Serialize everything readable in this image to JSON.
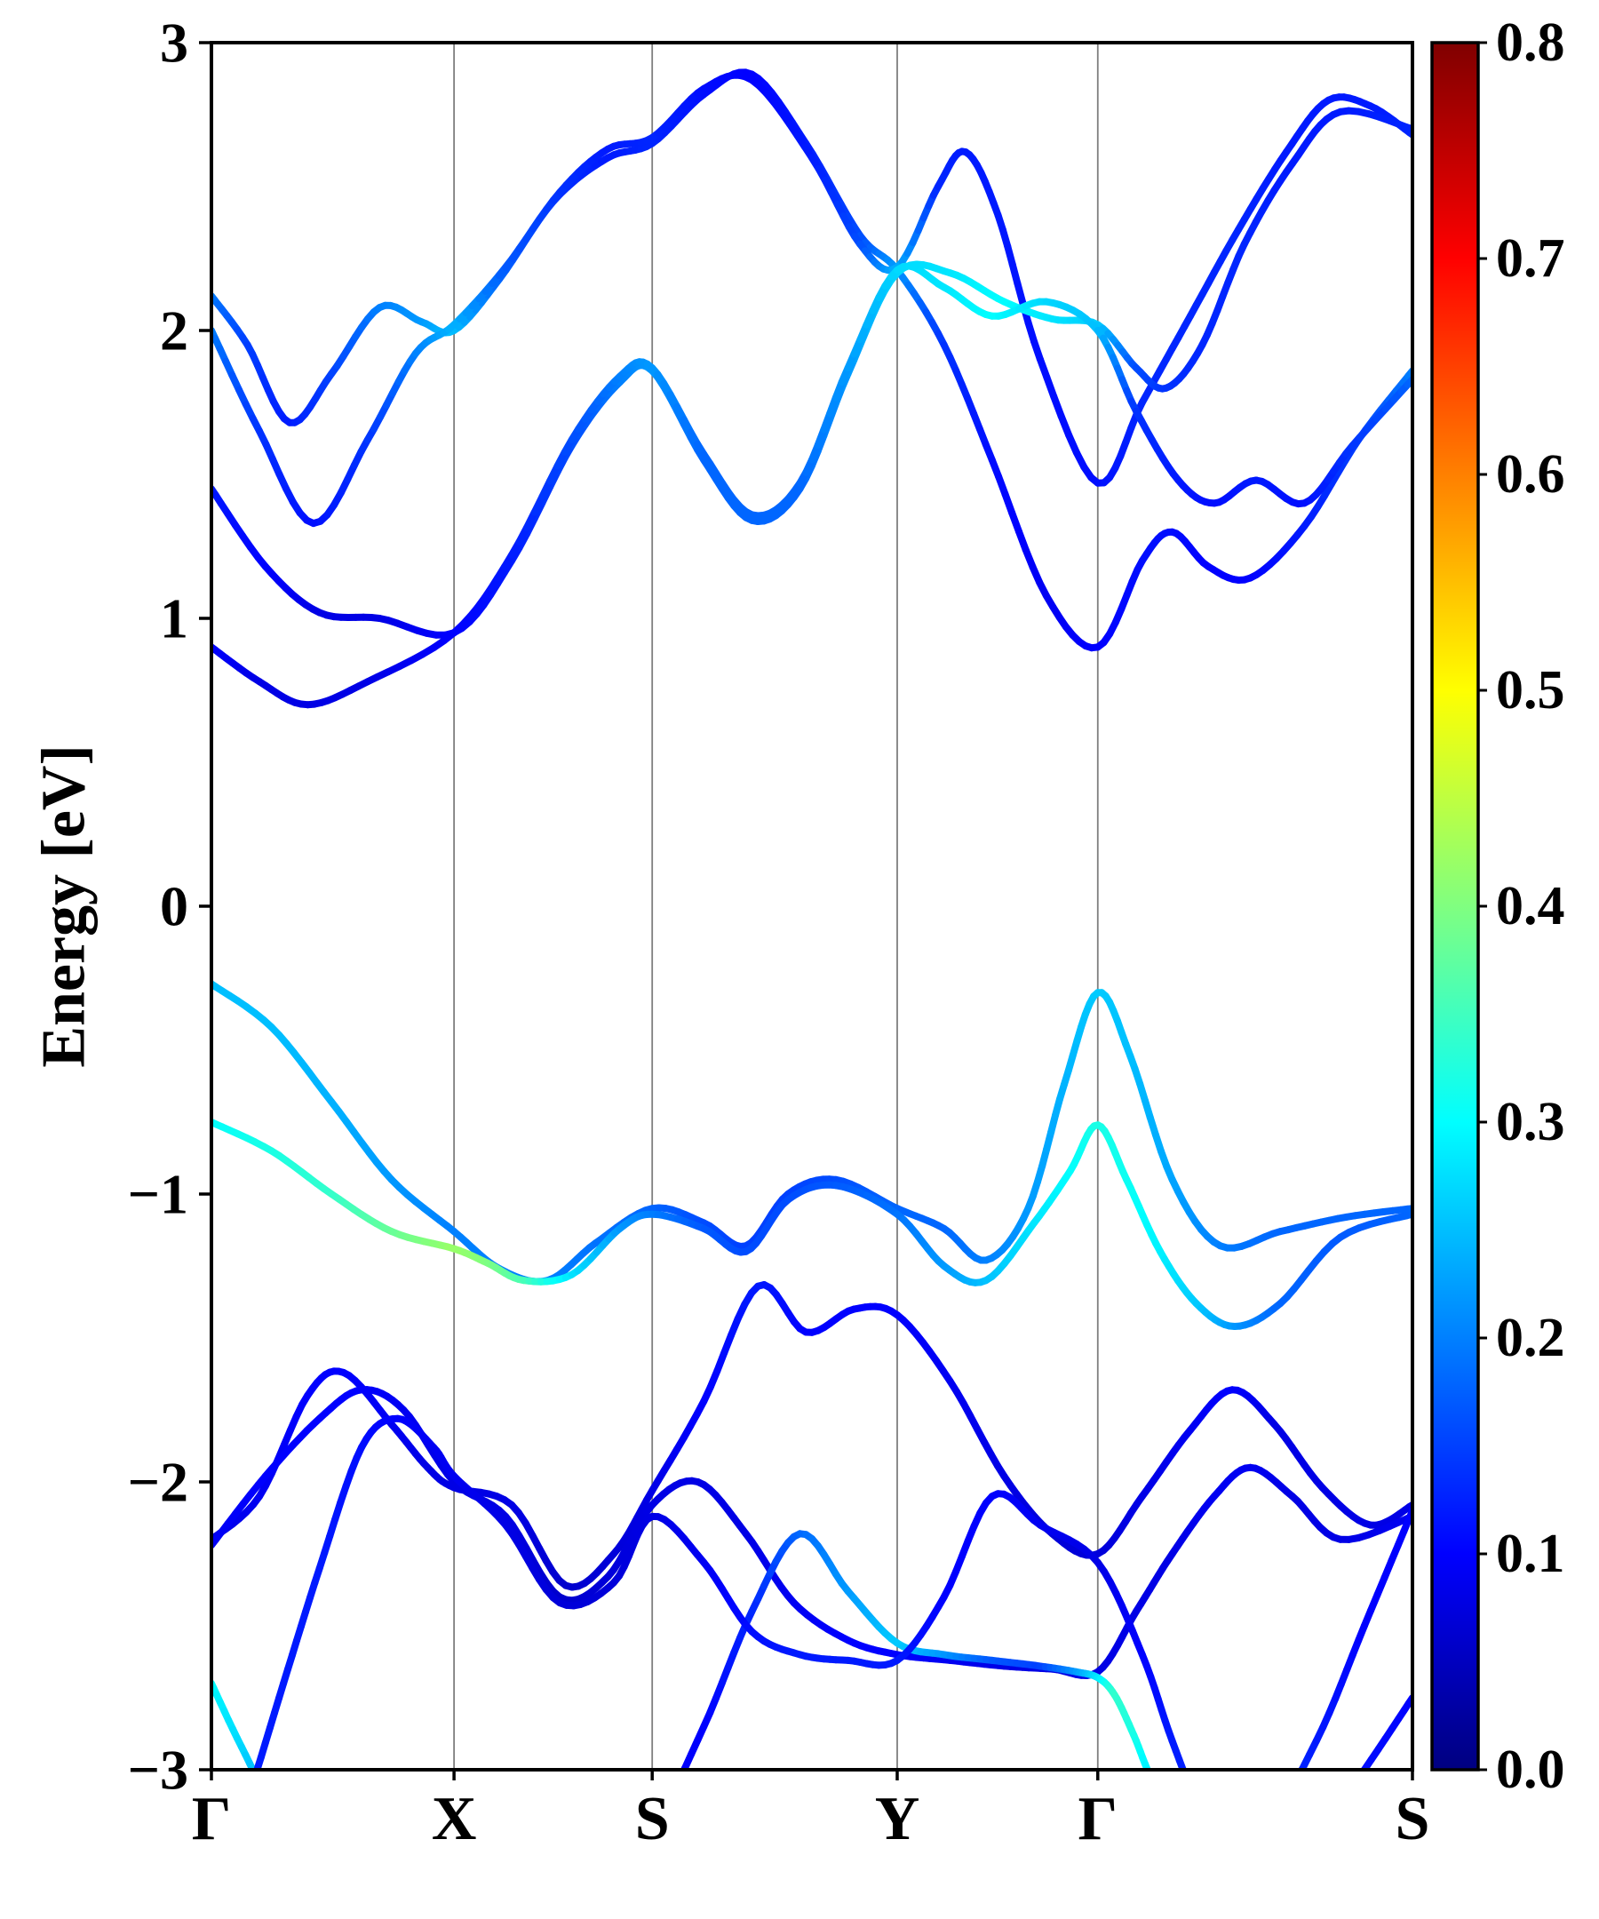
{
  "chart_data": {
    "type": "line",
    "subtype": "band-structure",
    "title": "",
    "xlabel": "",
    "ylabel": "Energy [eV]",
    "ylim": [
      -3,
      3
    ],
    "ytick_values": [
      -3,
      -2,
      -1,
      0,
      1,
      2,
      3
    ],
    "ytick_labels": [
      "−3",
      "−2",
      "−1",
      "0",
      "1",
      "2",
      "3"
    ],
    "grid": true,
    "legend": false,
    "kpoints": [
      {
        "label": "Γ",
        "pos": 0.0
      },
      {
        "label": "X",
        "pos": 0.202
      },
      {
        "label": "S",
        "pos": 0.367
      },
      {
        "label": "Y",
        "pos": 0.571
      },
      {
        "label": "Γ",
        "pos": 0.738
      },
      {
        "label": "S",
        "pos": 1.0
      }
    ],
    "colorbar": {
      "min": 0.0,
      "max": 0.8,
      "colormap": "jet",
      "tick_values": [
        0.0,
        0.1,
        0.2,
        0.3,
        0.4,
        0.5,
        0.6,
        0.7,
        0.8
      ],
      "tick_labels": [
        "0.0",
        "0.1",
        "0.2",
        "0.3",
        "0.4",
        "0.5",
        "0.6",
        "0.7",
        "0.8"
      ]
    },
    "style": {
      "grid_color": "#7f7f7f",
      "axis_color": "#000000",
      "band_linewidth": 8
    },
    "bands": [
      [
        [
          0.0,
          2.12,
          0.2
        ],
        [
          0.03,
          1.95,
          0.15
        ],
        [
          0.065,
          1.68,
          0.12
        ],
        [
          0.1,
          1.85,
          0.15
        ],
        [
          0.14,
          2.08,
          0.2
        ],
        [
          0.175,
          2.03,
          0.22
        ],
        [
          0.202,
          2.0,
          0.25
        ],
        [
          0.24,
          2.18,
          0.18
        ],
        [
          0.285,
          2.45,
          0.14
        ],
        [
          0.33,
          2.6,
          0.12
        ],
        [
          0.367,
          2.65,
          0.13
        ],
        [
          0.41,
          2.82,
          0.11
        ],
        [
          0.45,
          2.89,
          0.1
        ],
        [
          0.495,
          2.65,
          0.12
        ],
        [
          0.54,
          2.33,
          0.16
        ],
        [
          0.571,
          2.21,
          0.22
        ],
        [
          0.61,
          1.95,
          0.14
        ],
        [
          0.65,
          1.55,
          0.11
        ],
        [
          0.695,
          1.08,
          0.09
        ],
        [
          0.738,
          0.9,
          0.1
        ],
        [
          0.775,
          1.2,
          0.11
        ],
        [
          0.8,
          1.3,
          0.11
        ],
        [
          0.83,
          1.18,
          0.1
        ],
        [
          0.865,
          1.14,
          0.1
        ],
        [
          0.91,
          1.32,
          0.12
        ],
        [
          0.955,
          1.62,
          0.15
        ],
        [
          1.0,
          1.86,
          0.2
        ]
      ],
      [
        [
          0.0,
          2.0,
          0.2
        ],
        [
          0.04,
          1.65,
          0.14
        ],
        [
          0.085,
          1.33,
          0.11
        ],
        [
          0.13,
          1.62,
          0.14
        ],
        [
          0.17,
          1.92,
          0.2
        ],
        [
          0.202,
          2.02,
          0.24
        ],
        [
          0.245,
          2.22,
          0.17
        ],
        [
          0.29,
          2.48,
          0.14
        ],
        [
          0.33,
          2.63,
          0.12
        ],
        [
          0.367,
          2.67,
          0.13
        ],
        [
          0.41,
          2.84,
          0.11
        ],
        [
          0.45,
          2.87,
          0.1
        ],
        [
          0.5,
          2.6,
          0.12
        ],
        [
          0.54,
          2.3,
          0.16
        ],
        [
          0.571,
          2.22,
          0.24
        ],
        [
          0.605,
          2.5,
          0.13
        ],
        [
          0.628,
          2.62,
          0.12
        ],
        [
          0.655,
          2.4,
          0.12
        ],
        [
          0.69,
          1.9,
          0.11
        ],
        [
          0.738,
          1.47,
          0.11
        ],
        [
          0.775,
          1.75,
          0.13
        ],
        [
          0.815,
          2.05,
          0.13
        ],
        [
          0.855,
          2.35,
          0.13
        ],
        [
          0.895,
          2.62,
          0.12
        ],
        [
          0.93,
          2.8,
          0.12
        ],
        [
          0.965,
          2.78,
          0.12
        ],
        [
          1.0,
          2.68,
          0.13
        ]
      ],
      [
        [
          0.0,
          1.45,
          0.12
        ],
        [
          0.045,
          1.18,
          0.1
        ],
        [
          0.09,
          1.02,
          0.08
        ],
        [
          0.14,
          1.0,
          0.08
        ],
        [
          0.202,
          0.95,
          0.1
        ],
        [
          0.25,
          1.2,
          0.12
        ],
        [
          0.3,
          1.6,
          0.16
        ],
        [
          0.34,
          1.82,
          0.2
        ],
        [
          0.367,
          1.86,
          0.22
        ],
        [
          0.41,
          1.55,
          0.18
        ],
        [
          0.45,
          1.34,
          0.18
        ],
        [
          0.49,
          1.45,
          0.18
        ],
        [
          0.53,
          1.85,
          0.22
        ],
        [
          0.571,
          2.2,
          0.27
        ],
        [
          0.615,
          2.2,
          0.28
        ],
        [
          0.66,
          2.1,
          0.3
        ],
        [
          0.7,
          2.04,
          0.28
        ],
        [
          0.738,
          2.02,
          0.26
        ],
        [
          0.77,
          1.87,
          0.16
        ],
        [
          0.795,
          1.8,
          0.14
        ],
        [
          0.825,
          1.95,
          0.13
        ],
        [
          0.86,
          2.3,
          0.13
        ],
        [
          0.9,
          2.58,
          0.12
        ],
        [
          0.94,
          2.76,
          0.12
        ],
        [
          1.0,
          2.7,
          0.13
        ]
      ],
      [
        [
          0.0,
          0.9,
          0.1
        ],
        [
          0.04,
          0.78,
          0.08
        ],
        [
          0.08,
          0.7,
          0.08
        ],
        [
          0.13,
          0.78,
          0.08
        ],
        [
          0.202,
          0.95,
          0.1
        ],
        [
          0.25,
          1.22,
          0.12
        ],
        [
          0.3,
          1.62,
          0.16
        ],
        [
          0.34,
          1.84,
          0.2
        ],
        [
          0.367,
          1.87,
          0.22
        ],
        [
          0.41,
          1.57,
          0.18
        ],
        [
          0.45,
          1.36,
          0.18
        ],
        [
          0.49,
          1.47,
          0.18
        ],
        [
          0.53,
          1.87,
          0.22
        ],
        [
          0.571,
          2.21,
          0.27
        ],
        [
          0.61,
          2.15,
          0.28
        ],
        [
          0.65,
          2.05,
          0.3
        ],
        [
          0.695,
          2.1,
          0.27
        ],
        [
          0.738,
          2.0,
          0.25
        ],
        [
          0.77,
          1.72,
          0.14
        ],
        [
          0.805,
          1.48,
          0.12
        ],
        [
          0.835,
          1.4,
          0.11
        ],
        [
          0.87,
          1.48,
          0.12
        ],
        [
          0.91,
          1.4,
          0.11
        ],
        [
          0.95,
          1.6,
          0.14
        ],
        [
          1.0,
          1.83,
          0.18
        ]
      ],
      [
        [
          0.0,
          -0.27,
          0.25
        ],
        [
          0.05,
          -0.42,
          0.25
        ],
        [
          0.1,
          -0.68,
          0.24
        ],
        [
          0.15,
          -0.95,
          0.22
        ],
        [
          0.202,
          -1.13,
          0.2
        ],
        [
          0.24,
          -1.26,
          0.2
        ],
        [
          0.28,
          -1.3,
          0.2
        ],
        [
          0.32,
          -1.17,
          0.19
        ],
        [
          0.367,
          -1.05,
          0.18
        ],
        [
          0.41,
          -1.1,
          0.16
        ],
        [
          0.445,
          -1.18,
          0.15
        ],
        [
          0.48,
          -1.0,
          0.15
        ],
        [
          0.52,
          -0.95,
          0.16
        ],
        [
          0.571,
          -1.05,
          0.18
        ],
        [
          0.61,
          -1.12,
          0.18
        ],
        [
          0.645,
          -1.23,
          0.2
        ],
        [
          0.68,
          -1.05,
          0.22
        ],
        [
          0.71,
          -0.62,
          0.24
        ],
        [
          0.738,
          -0.3,
          0.26
        ],
        [
          0.765,
          -0.52,
          0.25
        ],
        [
          0.8,
          -0.95,
          0.23
        ],
        [
          0.84,
          -1.18,
          0.2
        ],
        [
          0.89,
          -1.13,
          0.18
        ],
        [
          0.945,
          -1.08,
          0.18
        ],
        [
          1.0,
          -1.05,
          0.18
        ]
      ],
      [
        [
          0.0,
          -0.75,
          0.3
        ],
        [
          0.05,
          -0.85,
          0.32
        ],
        [
          0.1,
          -1.0,
          0.34
        ],
        [
          0.15,
          -1.13,
          0.38
        ],
        [
          0.202,
          -1.19,
          0.42
        ],
        [
          0.23,
          -1.24,
          0.4
        ],
        [
          0.26,
          -1.3,
          0.36
        ],
        [
          0.3,
          -1.28,
          0.28
        ],
        [
          0.34,
          -1.12,
          0.22
        ],
        [
          0.367,
          -1.07,
          0.2
        ],
        [
          0.41,
          -1.12,
          0.17
        ],
        [
          0.445,
          -1.2,
          0.16
        ],
        [
          0.48,
          -1.02,
          0.16
        ],
        [
          0.52,
          -0.97,
          0.17
        ],
        [
          0.571,
          -1.07,
          0.19
        ],
        [
          0.61,
          -1.25,
          0.22
        ],
        [
          0.645,
          -1.3,
          0.25
        ],
        [
          0.685,
          -1.1,
          0.28
        ],
        [
          0.715,
          -0.92,
          0.3
        ],
        [
          0.738,
          -0.76,
          0.32
        ],
        [
          0.762,
          -0.95,
          0.31
        ],
        [
          0.79,
          -1.2,
          0.29
        ],
        [
          0.82,
          -1.38,
          0.26
        ],
        [
          0.852,
          -1.46,
          0.22
        ],
        [
          0.89,
          -1.38,
          0.18
        ],
        [
          0.94,
          -1.15,
          0.17
        ],
        [
          1.0,
          -1.07,
          0.18
        ]
      ],
      [
        [
          0.0,
          -2.2,
          0.08
        ],
        [
          0.04,
          -2.05,
          0.09
        ],
        [
          0.08,
          -1.7,
          0.1
        ],
        [
          0.11,
          -1.62,
          0.1
        ],
        [
          0.15,
          -1.8,
          0.09
        ],
        [
          0.18,
          -1.95,
          0.08
        ],
        [
          0.202,
          -2.02,
          0.08
        ],
        [
          0.25,
          -2.08,
          0.08
        ],
        [
          0.295,
          -2.36,
          0.06
        ],
        [
          0.335,
          -2.25,
          0.07
        ],
        [
          0.367,
          -2.03,
          0.08
        ],
        [
          0.41,
          -1.72,
          0.1
        ],
        [
          0.455,
          -1.32,
          0.12
        ],
        [
          0.495,
          -1.48,
          0.1
        ],
        [
          0.535,
          -1.4,
          0.1
        ],
        [
          0.571,
          -1.42,
          0.1
        ],
        [
          0.615,
          -1.65,
          0.09
        ],
        [
          0.66,
          -1.98,
          0.08
        ],
        [
          0.7,
          -2.18,
          0.07
        ],
        [
          0.738,
          -2.25,
          0.07
        ],
        [
          0.775,
          -2.05,
          0.08
        ],
        [
          0.815,
          -1.82,
          0.09
        ],
        [
          0.85,
          -1.68,
          0.1
        ],
        [
          0.885,
          -1.8,
          0.08
        ],
        [
          0.925,
          -2.02,
          0.08
        ],
        [
          0.965,
          -2.15,
          0.08
        ],
        [
          1.0,
          -2.08,
          0.08
        ]
      ],
      [
        [
          0.0,
          -2.22,
          0.09
        ],
        [
          0.045,
          -1.98,
          0.1
        ],
        [
          0.09,
          -1.78,
          0.1
        ],
        [
          0.125,
          -1.68,
          0.1
        ],
        [
          0.16,
          -1.75,
          0.09
        ],
        [
          0.202,
          -2.0,
          0.08
        ],
        [
          0.245,
          -2.12,
          0.08
        ],
        [
          0.29,
          -2.4,
          0.06
        ],
        [
          0.33,
          -2.33,
          0.07
        ],
        [
          0.367,
          -2.08,
          0.08
        ],
        [
          0.405,
          -2.0,
          0.08
        ],
        [
          0.445,
          -2.18,
          0.08
        ],
        [
          0.485,
          -2.42,
          0.09
        ],
        [
          0.53,
          -2.55,
          0.1
        ],
        [
          0.571,
          -2.6,
          0.1
        ],
        [
          0.615,
          -2.62,
          0.09
        ],
        [
          0.66,
          -2.64,
          0.08
        ],
        [
          0.7,
          -2.65,
          0.08
        ],
        [
          0.738,
          -2.66,
          0.08
        ],
        [
          0.77,
          -2.45,
          0.08
        ],
        [
          0.8,
          -2.25,
          0.08
        ],
        [
          0.835,
          -2.05,
          0.09
        ],
        [
          0.865,
          -1.95,
          0.09
        ],
        [
          0.9,
          -2.05,
          0.08
        ],
        [
          0.94,
          -2.2,
          0.08
        ],
        [
          1.0,
          -2.12,
          0.09
        ]
      ],
      [
        [
          0.0,
          -2.7,
          0.3
        ],
        [
          0.025,
          -2.92,
          0.27
        ],
        [
          0.055,
          -3.15,
          0.22
        ],
        [
          0.1,
          -3.35,
          0.16
        ],
        [
          0.16,
          -3.4,
          0.12
        ],
        [
          0.202,
          -3.35,
          0.1
        ],
        [
          0.26,
          -3.4,
          0.08
        ],
        [
          0.32,
          -3.35,
          0.08
        ],
        [
          0.367,
          -3.2,
          0.09
        ],
        [
          0.41,
          -2.85,
          0.1
        ],
        [
          0.45,
          -2.45,
          0.13
        ],
        [
          0.49,
          -2.18,
          0.18
        ],
        [
          0.53,
          -2.38,
          0.22
        ],
        [
          0.571,
          -2.56,
          0.26
        ],
        [
          0.61,
          -2.6,
          0.22
        ],
        [
          0.65,
          -2.62,
          0.17
        ],
        [
          0.69,
          -2.64,
          0.15
        ],
        [
          0.72,
          -2.66,
          0.22
        ],
        [
          0.738,
          -2.68,
          0.28
        ],
        [
          0.752,
          -2.74,
          0.34
        ],
        [
          0.768,
          -2.88,
          0.32
        ],
        [
          0.785,
          -3.05,
          0.28
        ],
        [
          0.82,
          -3.3,
          0.22
        ],
        [
          0.87,
          -3.25,
          0.15
        ],
        [
          0.92,
          -2.9,
          0.12
        ],
        [
          0.96,
          -2.5,
          0.1
        ],
        [
          1.0,
          -2.1,
          0.1
        ]
      ],
      [
        [
          0.0,
          -3.4,
          0.12
        ],
        [
          0.03,
          -3.1,
          0.12
        ],
        [
          0.06,
          -2.7,
          0.12
        ],
        [
          0.09,
          -2.3,
          0.12
        ],
        [
          0.125,
          -1.88,
          0.11
        ],
        [
          0.155,
          -1.78,
          0.1
        ],
        [
          0.185,
          -1.88,
          0.09
        ],
        [
          0.202,
          -1.98,
          0.09
        ],
        [
          0.245,
          -2.15,
          0.08
        ],
        [
          0.29,
          -2.42,
          0.07
        ],
        [
          0.335,
          -2.35,
          0.07
        ],
        [
          0.367,
          -2.12,
          0.08
        ],
        [
          0.41,
          -2.28,
          0.09
        ],
        [
          0.45,
          -2.52,
          0.11
        ],
        [
          0.49,
          -2.6,
          0.12
        ],
        [
          0.53,
          -2.62,
          0.12
        ],
        [
          0.571,
          -2.62,
          0.12
        ],
        [
          0.61,
          -2.4,
          0.1
        ],
        [
          0.65,
          -2.05,
          0.1
        ],
        [
          0.69,
          -2.15,
          0.09
        ],
        [
          0.738,
          -2.28,
          0.08
        ],
        [
          0.775,
          -2.6,
          0.1
        ],
        [
          0.8,
          -2.9,
          0.12
        ],
        [
          0.825,
          -3.15,
          0.13
        ],
        [
          0.86,
          -3.35,
          0.13
        ],
        [
          0.91,
          -3.3,
          0.12
        ],
        [
          0.96,
          -3.0,
          0.11
        ],
        [
          1.0,
          -2.75,
          0.1
        ]
      ]
    ]
  }
}
